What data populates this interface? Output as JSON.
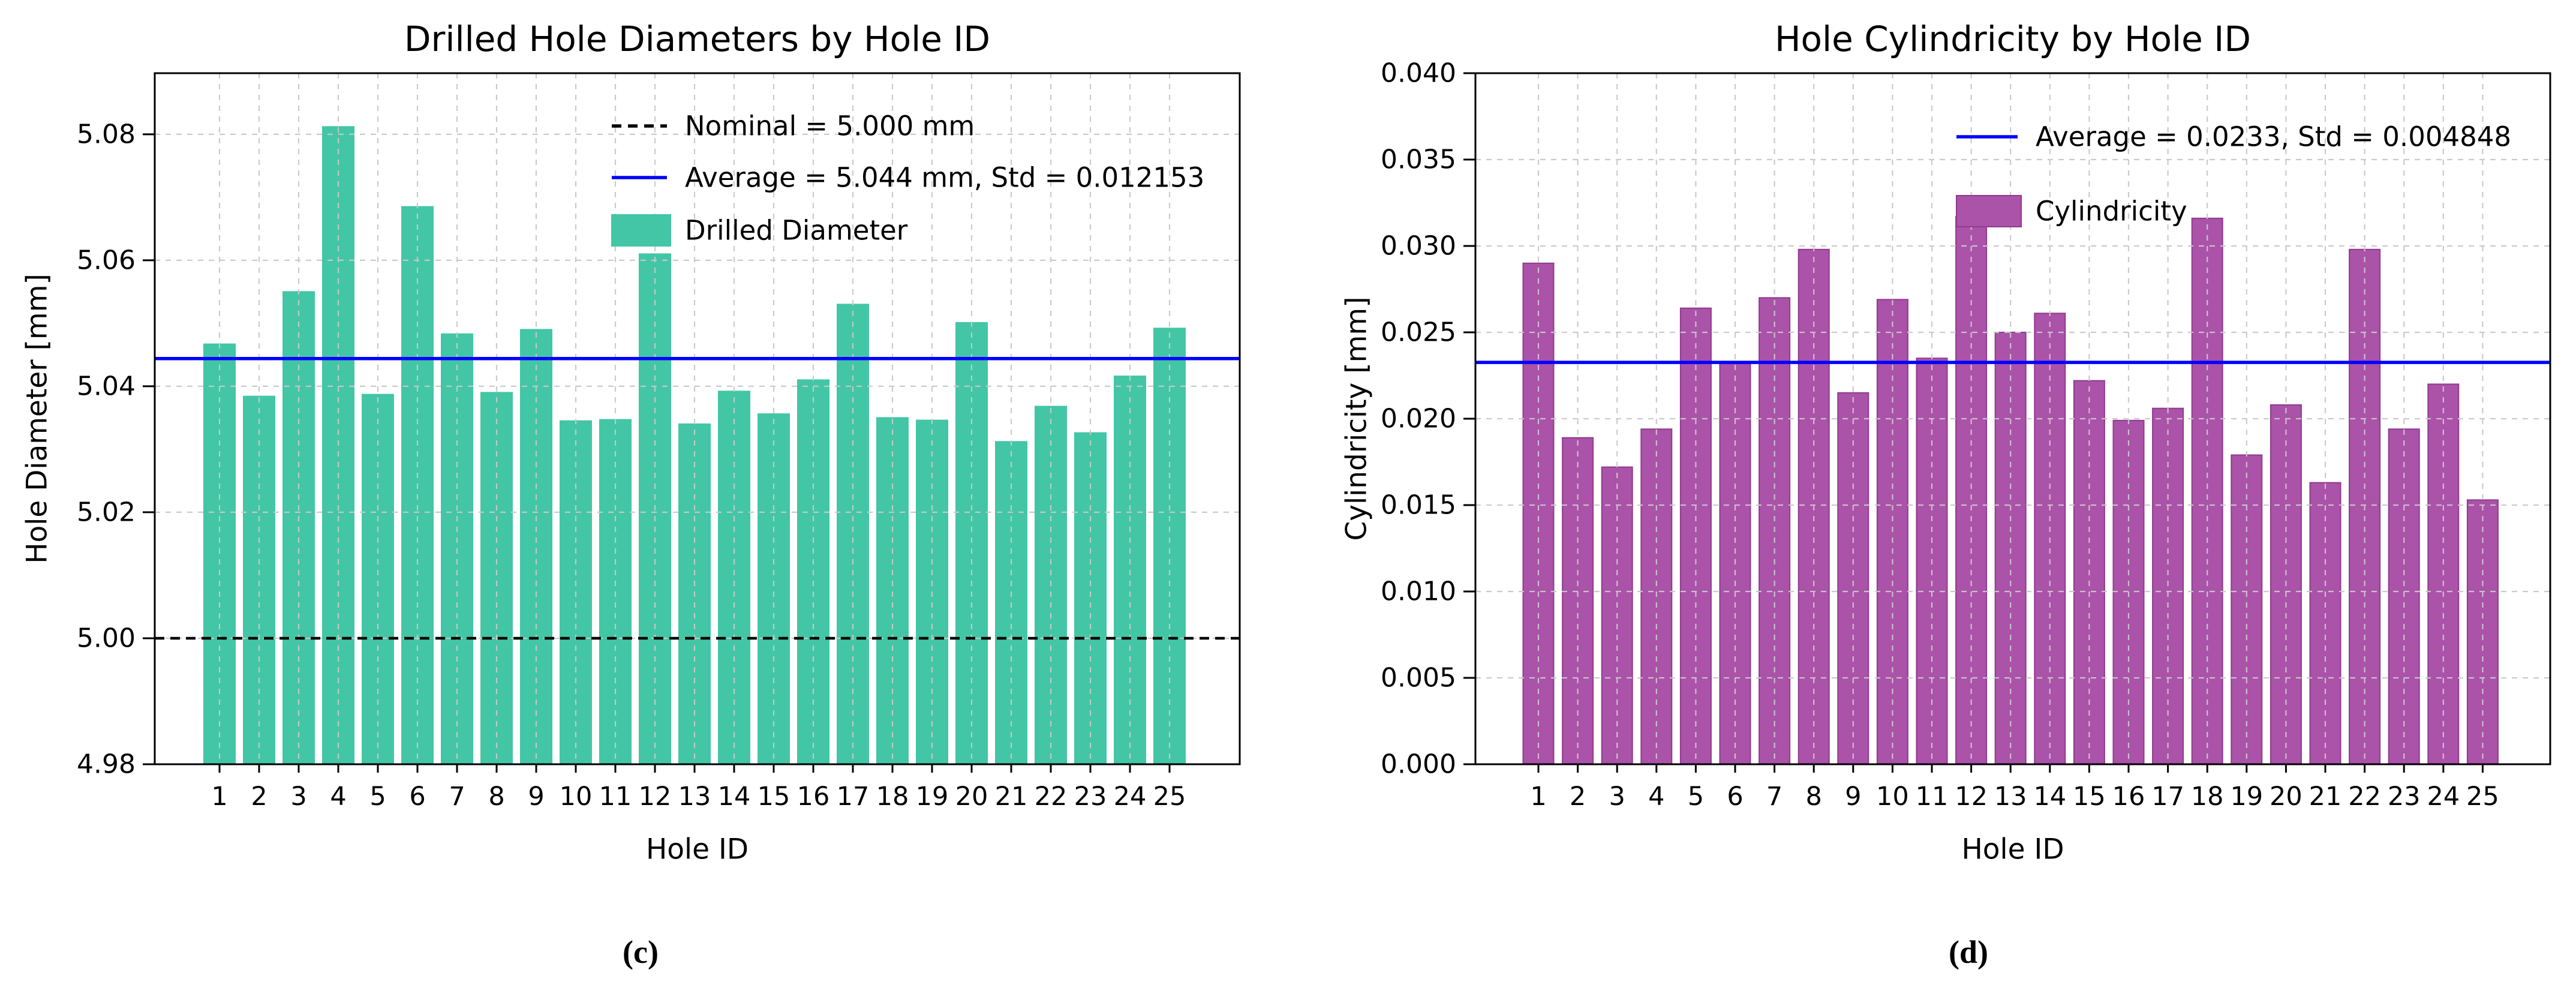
{
  "figure": {
    "background": "#ffffff",
    "captions": {
      "left": "(c)",
      "right": "(d)"
    }
  },
  "chart_data": [
    {
      "type": "bar",
      "panel": "left",
      "title": "Drilled Hole Diameters by Hole ID",
      "xlabel": "Hole ID",
      "ylabel": "Hole Diameter [mm]",
      "categories": [
        "1",
        "2",
        "3",
        "4",
        "5",
        "6",
        "7",
        "8",
        "9",
        "10",
        "11",
        "12",
        "13",
        "14",
        "15",
        "16",
        "17",
        "18",
        "19",
        "20",
        "21",
        "22",
        "23",
        "24",
        "25"
      ],
      "values": [
        5.0467,
        5.0384,
        5.055,
        5.0812,
        5.0387,
        5.0685,
        5.0483,
        5.039,
        5.049,
        5.0345,
        5.0347,
        5.061,
        5.034,
        5.0392,
        5.0356,
        5.041,
        5.053,
        5.035,
        5.0346,
        5.0501,
        5.0312,
        5.0368,
        5.0326,
        5.0416,
        5.0492
      ],
      "ylim": [
        4.98,
        5.0897
      ],
      "yticks": [
        4.98,
        5.0,
        5.02,
        5.04,
        5.06,
        5.08
      ],
      "ytick_decimals": 2,
      "grid": true,
      "legend_position": "upper right",
      "bar_color": "#43c6a5",
      "bar_edge_color": "#43c6a5",
      "series_legend_label": "Drilled Diameter",
      "reference_lines": [
        {
          "name": "nominal",
          "value": 5.0,
          "color": "#000000",
          "style": "dashed",
          "legend_label": "Nominal = 5.000 mm"
        },
        {
          "name": "average",
          "value": 5.0444,
          "color": "#0000ff",
          "style": "solid",
          "legend_label": "Average = 5.044 mm, Std = 0.012153"
        }
      ]
    },
    {
      "type": "bar",
      "panel": "right",
      "title": "Hole Cylindricity by Hole ID",
      "xlabel": "Hole ID",
      "ylabel": "Cylindricity [mm]",
      "categories": [
        "1",
        "2",
        "3",
        "4",
        "5",
        "6",
        "7",
        "8",
        "9",
        "10",
        "11",
        "12",
        "13",
        "14",
        "15",
        "16",
        "17",
        "18",
        "19",
        "20",
        "21",
        "22",
        "23",
        "24",
        "25"
      ],
      "values": [
        0.029,
        0.0189,
        0.0172,
        0.0194,
        0.0264,
        0.0232,
        0.027,
        0.0298,
        0.0215,
        0.0269,
        0.0235,
        0.0317,
        0.025,
        0.0261,
        0.0222,
        0.0199,
        0.0206,
        0.0316,
        0.0179,
        0.0208,
        0.0163,
        0.0298,
        0.0194,
        0.022,
        0.0153
      ],
      "ylim": [
        0.0,
        0.04
      ],
      "yticks": [
        0.0,
        0.005,
        0.01,
        0.015,
        0.02,
        0.025,
        0.03,
        0.035,
        0.04
      ],
      "ytick_decimals": 3,
      "grid": true,
      "legend_position": "upper right",
      "bar_color": "#ab52a9",
      "bar_edge_color": "#8f3b8e",
      "series_legend_label": "Cylindricity",
      "reference_lines": [
        {
          "name": "average",
          "value": 0.02326,
          "color": "#0000ff",
          "style": "solid",
          "legend_label": "Average = 0.0233, Std = 0.004848"
        }
      ]
    }
  ]
}
